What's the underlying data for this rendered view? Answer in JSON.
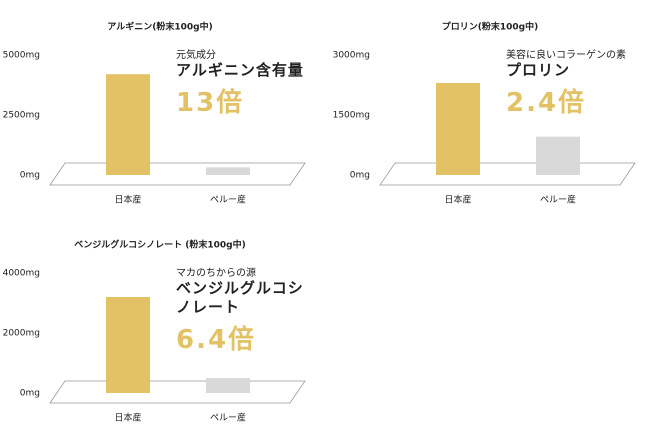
{
  "chart_data": [
    {
      "type": "bar",
      "title": "アルギニン(粉末100g中)",
      "categories": [
        "日本産",
        "ペルー産"
      ],
      "values": [
        4200,
        320
      ],
      "colors": [
        "#e3c265",
        "#d9d9d9"
      ],
      "ylim": [
        0,
        5000
      ],
      "yticks": [
        {
          "value": 0,
          "label": "0mg"
        },
        {
          "value": 2500,
          "label": "2500mg"
        },
        {
          "value": 5000,
          "label": "5000mg"
        }
      ],
      "annotations": [
        "元気成分",
        "アルギニン含有量",
        "13倍"
      ]
    },
    {
      "type": "bar",
      "title": "プロリン(粉末100g中)",
      "categories": [
        "日本産",
        "ペルー産"
      ],
      "values": [
        2300,
        960
      ],
      "colors": [
        "#e3c265",
        "#d9d9d9"
      ],
      "ylim": [
        0,
        3000
      ],
      "yticks": [
        {
          "value": 0,
          "label": "0mg"
        },
        {
          "value": 1500,
          "label": "1500mg"
        },
        {
          "value": 3000,
          "label": "3000mg"
        }
      ],
      "annotations": [
        "美容に良いコラーゲンの素",
        "プロリン",
        "2.4倍"
      ]
    },
    {
      "type": "bar",
      "title": "ベンジルグルコシノレート (粉末100g中)",
      "categories": [
        "日本産",
        "ペルー産"
      ],
      "values": [
        3200,
        500
      ],
      "colors": [
        "#e3c265",
        "#d9d9d9"
      ],
      "ylim": [
        0,
        4000
      ],
      "yticks": [
        {
          "value": 0,
          "label": "0mg"
        },
        {
          "value": 2000,
          "label": "2000mg"
        },
        {
          "value": 4000,
          "label": "4000mg"
        }
      ],
      "annotations": [
        "マカのちからの源",
        "ベンジルグルコシノレート",
        "6.4倍"
      ]
    }
  ]
}
